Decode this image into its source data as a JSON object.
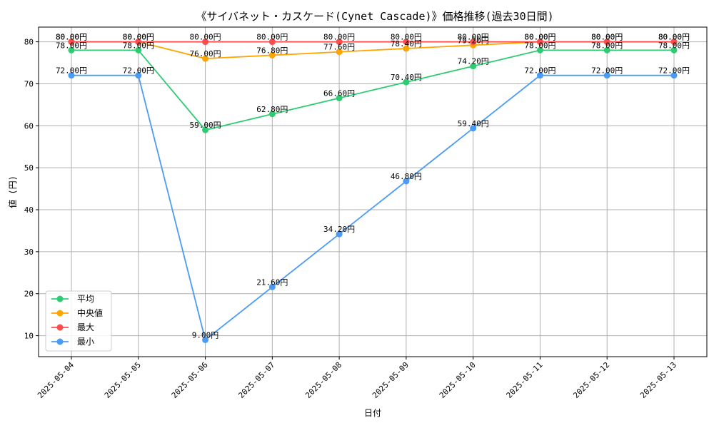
{
  "chart_data": {
    "type": "line",
    "title": "《サイバネット・カスケード(Cynet Cascade)》価格推移(過去30日間)",
    "xlabel": "日付",
    "ylabel": "値 (円)",
    "categories": [
      "2025-05-04",
      "2025-05-05",
      "2025-05-06",
      "2025-05-07",
      "2025-05-08",
      "2025-05-09",
      "2025-05-10",
      "2025-05-11",
      "2025-05-12",
      "2025-05-13"
    ],
    "ylim": [
      5,
      83.5
    ],
    "yticks": [
      10,
      20,
      30,
      40,
      50,
      60,
      70,
      80
    ],
    "grid": true,
    "legend_position": "lower-left",
    "value_suffix": "円",
    "series": [
      {
        "name": "平均",
        "color": "#2ecc71",
        "values": [
          78.0,
          78.0,
          59.0,
          62.8,
          66.6,
          70.4,
          74.2,
          78.0,
          78.0,
          78.0
        ]
      },
      {
        "name": "中央値",
        "color": "#ffa500",
        "values": [
          80.0,
          80.0,
          76.0,
          76.8,
          77.6,
          78.4,
          79.2,
          80.0,
          80.0,
          80.0
        ]
      },
      {
        "name": "最大",
        "color": "#ff4d4d",
        "values": [
          80.0,
          80.0,
          80.0,
          80.0,
          80.0,
          80.0,
          80.0,
          80.0,
          80.0,
          80.0
        ]
      },
      {
        "name": "最小",
        "color": "#4a9bf5",
        "values": [
          72.0,
          72.0,
          9.0,
          21.6,
          34.2,
          46.8,
          59.4,
          72.0,
          72.0,
          72.0
        ]
      }
    ]
  }
}
